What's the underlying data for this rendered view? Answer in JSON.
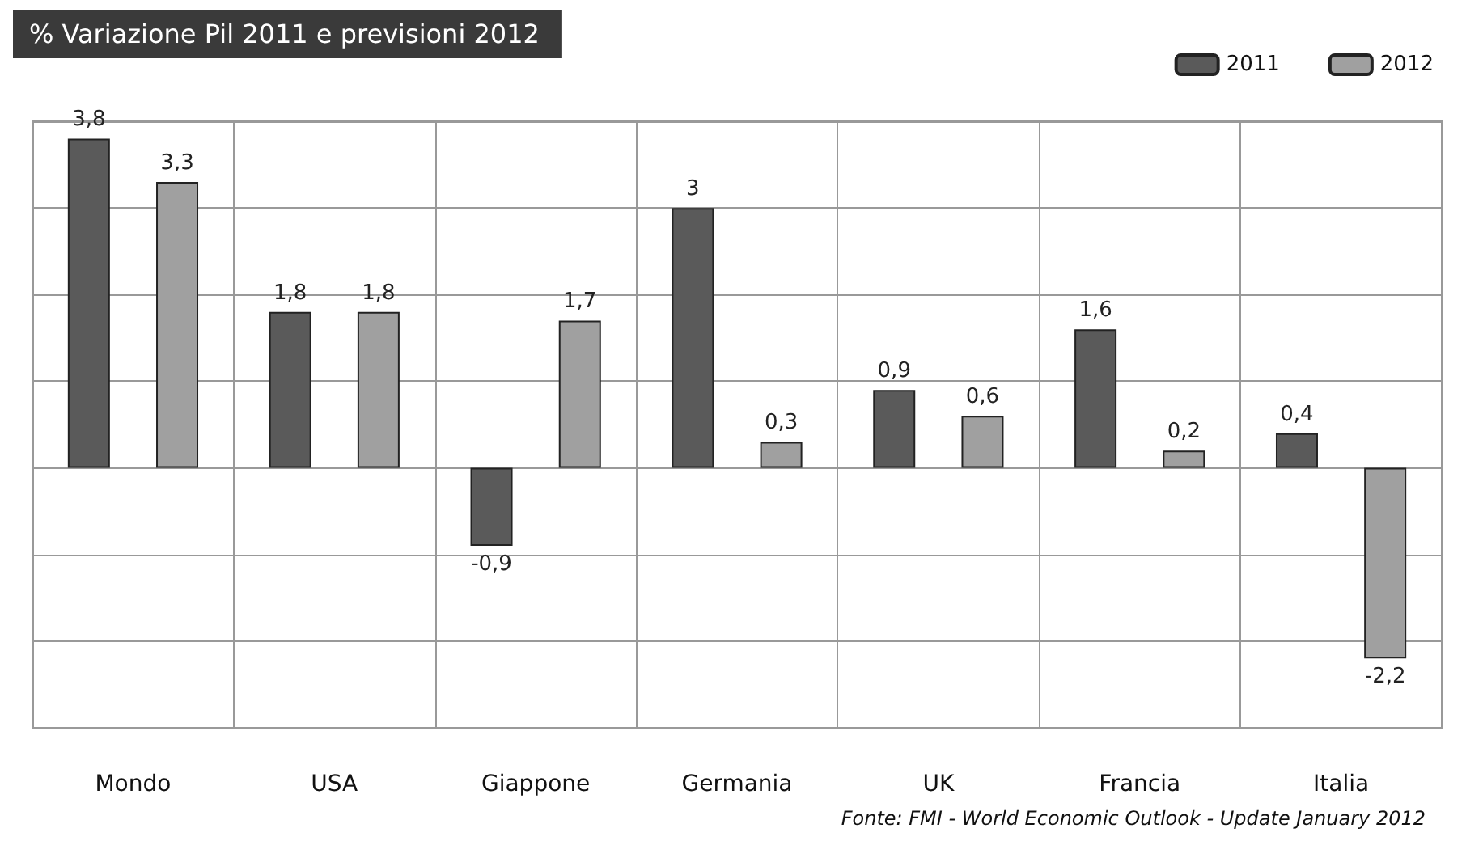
{
  "chart_data": {
    "type": "bar",
    "title": "% Variazione Pil 2011 e previsioni 2012",
    "categories": [
      "Mondo",
      "USA",
      "Giappone",
      "Germania",
      "UK",
      "Francia",
      "Italia"
    ],
    "series": [
      {
        "name": "2011",
        "color": "#5a5a5a",
        "values": [
          3.8,
          1.8,
          -0.9,
          3,
          0.9,
          1.6,
          0.4
        ],
        "value_labels": [
          "3,8",
          "1,8",
          "-0,9",
          "3",
          "0,9",
          "1,6",
          "0,4"
        ]
      },
      {
        "name": "2012",
        "color": "#a0a0a0",
        "values": [
          3.3,
          1.8,
          1.7,
          0.3,
          0.6,
          0.2,
          -2.2
        ],
        "value_labels": [
          "3,3",
          "1,8",
          "1,7",
          "0,3",
          "0,6",
          "0,2",
          "-2,2"
        ]
      }
    ],
    "tick_labels": "x",
    "grid": true,
    "legend": "top right",
    "annotations": [
      "Fonte: FMI - World Economic Outlook - Update January 2012"
    ]
  }
}
